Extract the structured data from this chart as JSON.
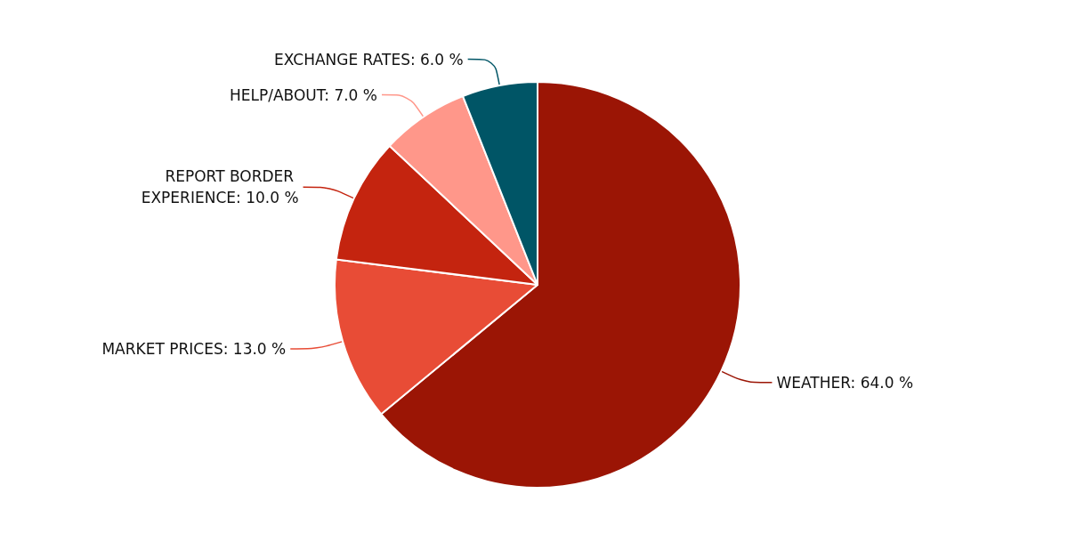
{
  "chart_data": {
    "type": "pie",
    "categories": [
      "WEATHER",
      "MARKET PRICES",
      "REPORT BORDER EXPERIENCE",
      "HELP/ABOUT",
      "EXCHANGE RATES"
    ],
    "values": [
      64,
      13,
      10,
      7,
      6
    ],
    "value_labels": [
      "64.0 %",
      "13.0 %",
      "10.0 %",
      "7.0 %",
      "6.0 %"
    ],
    "colors": [
      "#9b1505",
      "#e84c36",
      "#c4240f",
      "#ff978a",
      "#005566"
    ],
    "legend": false
  }
}
